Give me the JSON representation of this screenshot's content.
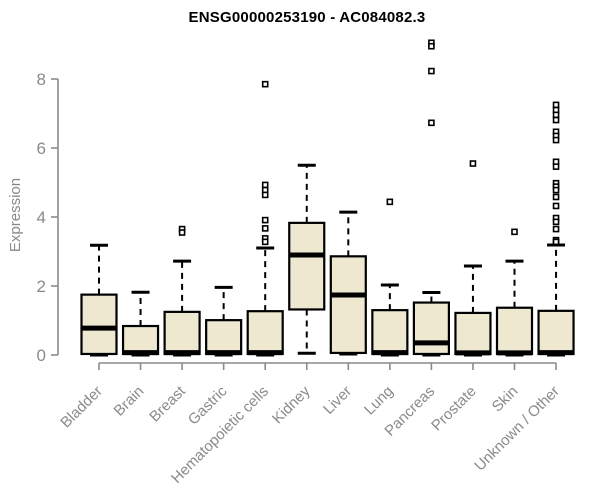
{
  "page": {
    "background": "#ffffff"
  },
  "chart_data": {
    "type": "boxplot",
    "title": "ENSG00000253190 - AC084082.3",
    "ylabel": "Expression",
    "xlabel": "",
    "ylim": [
      0,
      8
    ],
    "yticks": [
      0,
      2,
      4,
      6,
      8
    ],
    "grid": false,
    "legend_position": "none",
    "colors": {
      "box_fill": "#ede8cf",
      "box_border": "#000000",
      "median": "#000000",
      "whisker": "#000000",
      "outlier": "#000000",
      "axis": "#8a8a8a",
      "tick_label": "#8a8a8a",
      "title": "#000000",
      "background": "#ffffff"
    },
    "categories": [
      "Bladder",
      "Brain",
      "Breast",
      "Gastric",
      "Hematopoietic cells",
      "Kidney",
      "Liver",
      "Lung",
      "Pancreas",
      "Prostate",
      "Skin",
      "Unknown / Other"
    ],
    "boxes": [
      {
        "category": "Bladder",
        "whisker_low": 0,
        "q1": 0.03,
        "median": 0.78,
        "q3": 1.75,
        "whisker_high": 3.18,
        "outliers": []
      },
      {
        "category": "Brain",
        "whisker_low": 0,
        "q1": 0.03,
        "median": 0.07,
        "q3": 0.84,
        "whisker_high": 1.82,
        "outliers": []
      },
      {
        "category": "Breast",
        "whisker_low": 0,
        "q1": 0.03,
        "median": 0.07,
        "q3": 1.25,
        "whisker_high": 2.72,
        "outliers": [
          3.65,
          3.55
        ]
      },
      {
        "category": "Gastric",
        "whisker_low": 0,
        "q1": 0.03,
        "median": 0.07,
        "q3": 1.01,
        "whisker_high": 1.96,
        "outliers": []
      },
      {
        "category": "Hematopoietic cells",
        "whisker_low": 0,
        "q1": 0.03,
        "median": 0.07,
        "q3": 1.27,
        "whisker_high": 3.1,
        "outliers": [
          7.85,
          4.93,
          4.78,
          4.64,
          3.91,
          3.67,
          3.38,
          3.28
        ]
      },
      {
        "category": "Kidney",
        "whisker_low": 0.05,
        "q1": 1.32,
        "median": 2.9,
        "q3": 3.83,
        "whisker_high": 5.5,
        "outliers": []
      },
      {
        "category": "Liver",
        "whisker_low": 0.03,
        "q1": 0.06,
        "median": 1.74,
        "q3": 2.86,
        "whisker_high": 4.14,
        "outliers": []
      },
      {
        "category": "Lung",
        "whisker_low": 0,
        "q1": 0.03,
        "median": 0.07,
        "q3": 1.3,
        "whisker_high": 2.03,
        "outliers": [
          4.44
        ]
      },
      {
        "category": "Pancreas",
        "whisker_low": 0,
        "q1": 0.03,
        "median": 0.35,
        "q3": 1.52,
        "whisker_high": 1.81,
        "outliers": [
          9.05,
          8.95,
          8.23,
          6.73
        ]
      },
      {
        "category": "Prostate",
        "whisker_low": 0,
        "q1": 0.03,
        "median": 0.06,
        "q3": 1.22,
        "whisker_high": 2.58,
        "outliers": [
          5.55
        ]
      },
      {
        "category": "Skin",
        "whisker_low": 0,
        "q1": 0.03,
        "median": 0.06,
        "q3": 1.37,
        "whisker_high": 2.72,
        "outliers": [
          3.57
        ]
      },
      {
        "category": "Unknown / Other",
        "whisker_low": 0,
        "q1": 0.03,
        "median": 0.07,
        "q3": 1.28,
        "whisker_high": 3.19,
        "outliers": [
          7.25,
          7.1,
          6.96,
          6.81,
          6.47,
          6.35,
          6.23,
          5.6,
          5.46,
          4.98,
          4.88,
          4.78,
          4.58,
          4.32,
          3.97,
          3.86,
          3.65,
          3.33,
          3.28
        ]
      }
    ]
  }
}
